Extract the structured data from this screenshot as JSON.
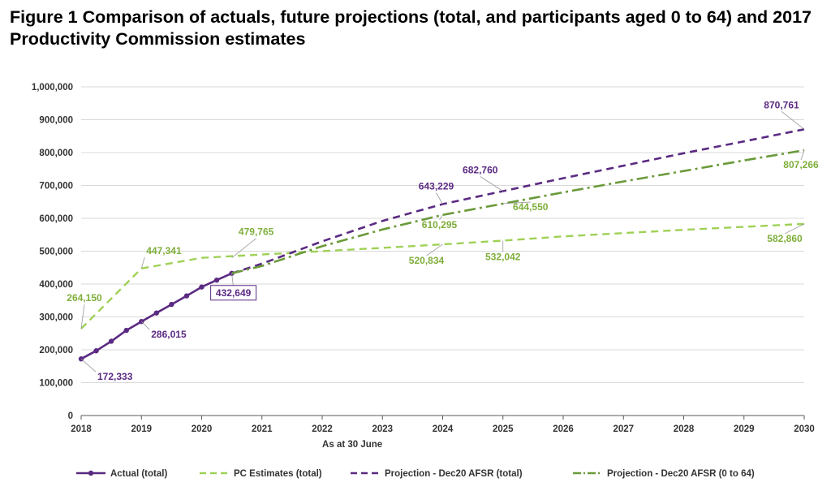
{
  "title": "Figure 1 Comparison of actuals, future projections (total, and participants aged 0 to 64) and 2017 Productivity Commission estimates",
  "colors": {
    "actual": "#5b2a82",
    "pc": "#9fd156",
    "projection_total": "#5b2a82",
    "projection_0_64": "#6a9a3a",
    "pc_label": "#7fae3a",
    "grid": "#d9d9d9",
    "axis": "#595959"
  },
  "chart_data": {
    "type": "line",
    "title": "Figure 1 Comparison of actuals, future projections (total, and participants aged 0 to 64) and 2017 Productivity Commission estimates",
    "xlabel": "As at 30 June",
    "ylabel": "",
    "xlim": [
      2018,
      2030
    ],
    "ylim": [
      0,
      1000000
    ],
    "x_ticks": [
      "2018",
      "2019",
      "2020",
      "2021",
      "2022",
      "2023",
      "2024",
      "2025",
      "2026",
      "2027",
      "2028",
      "2029",
      "2030"
    ],
    "y_ticks": [
      "0",
      "100,000",
      "200,000",
      "300,000",
      "400,000",
      "500,000",
      "600,000",
      "700,000",
      "800,000",
      "900,000",
      "1,000,000"
    ],
    "grid": "horizontal",
    "legend_position": "bottom",
    "series": [
      {
        "key": "actual",
        "name": "Actual (total)",
        "style": "solid-markers",
        "points": [
          [
            2018.0,
            172333
          ],
          [
            2018.25,
            197000
          ],
          [
            2018.5,
            226000
          ],
          [
            2018.75,
            259000
          ],
          [
            2019.0,
            286015
          ],
          [
            2019.25,
            312000
          ],
          [
            2019.5,
            338000
          ],
          [
            2019.75,
            364000
          ],
          [
            2020.0,
            391000
          ],
          [
            2020.25,
            412000
          ],
          [
            2020.5,
            432649
          ]
        ]
      },
      {
        "key": "pc",
        "name": "PC Estimates (total)",
        "style": "dash",
        "points": [
          [
            2018,
            264150
          ],
          [
            2019,
            447341
          ],
          [
            2020,
            479765
          ],
          [
            2021,
            490000
          ],
          [
            2022,
            500000
          ],
          [
            2023,
            510000
          ],
          [
            2024,
            520834
          ],
          [
            2025,
            532042
          ],
          [
            2026,
            545000
          ],
          [
            2027,
            555000
          ],
          [
            2028,
            565000
          ],
          [
            2029,
            574000
          ],
          [
            2030,
            582860
          ]
        ]
      },
      {
        "key": "projection_total",
        "name": "Projection - Dec20 AFSR (total)",
        "style": "dash",
        "points": [
          [
            2020.5,
            432649
          ],
          [
            2021,
            462000
          ],
          [
            2022,
            530000
          ],
          [
            2023,
            592000
          ],
          [
            2024,
            643229
          ],
          [
            2025,
            682760
          ],
          [
            2026,
            722000
          ],
          [
            2027,
            760000
          ],
          [
            2028,
            798000
          ],
          [
            2029,
            834000
          ],
          [
            2030,
            870761
          ]
        ]
      },
      {
        "key": "projection_0_64",
        "name": "Projection - Dec20 AFSR (0 to 64)",
        "style": "dashdot",
        "points": [
          [
            2020.5,
            432649
          ],
          [
            2021,
            455000
          ],
          [
            2022,
            515000
          ],
          [
            2023,
            566000
          ],
          [
            2024,
            610295
          ],
          [
            2025,
            644550
          ],
          [
            2026,
            679000
          ],
          [
            2027,
            712000
          ],
          [
            2028,
            744000
          ],
          [
            2029,
            776000
          ],
          [
            2030,
            807266
          ]
        ]
      }
    ],
    "annotations": [
      {
        "text": "172,333",
        "series": "actual",
        "x": 2018,
        "y": 172333
      },
      {
        "text": "286,015",
        "series": "actual",
        "x": 2019,
        "y": 286015
      },
      {
        "text": "432,649",
        "series": "actual",
        "x": 2020.5,
        "y": 432649,
        "boxed": true
      },
      {
        "text": "264,150",
        "series": "pc",
        "x": 2018,
        "y": 264150
      },
      {
        "text": "447,341",
        "series": "pc",
        "x": 2019,
        "y": 447341
      },
      {
        "text": "479,765",
        "series": "pc",
        "x": 2020.5,
        "y": 479765
      },
      {
        "text": "520,834",
        "series": "pc",
        "x": 2024,
        "y": 520834
      },
      {
        "text": "532,042",
        "series": "pc",
        "x": 2025,
        "y": 532042
      },
      {
        "text": "582,860",
        "series": "pc",
        "x": 2030,
        "y": 582860
      },
      {
        "text": "643,229",
        "series": "projection_total",
        "x": 2024,
        "y": 643229
      },
      {
        "text": "682,760",
        "series": "projection_total",
        "x": 2025,
        "y": 682760
      },
      {
        "text": "870,761",
        "series": "projection_total",
        "x": 2030,
        "y": 870761
      },
      {
        "text": "610,295",
        "series": "projection_0_64",
        "x": 2024,
        "y": 610295
      },
      {
        "text": "644,550",
        "series": "projection_0_64",
        "x": 2025,
        "y": 644550
      },
      {
        "text": "807,266",
        "series": "projection_0_64",
        "x": 2030,
        "y": 807266
      }
    ]
  }
}
